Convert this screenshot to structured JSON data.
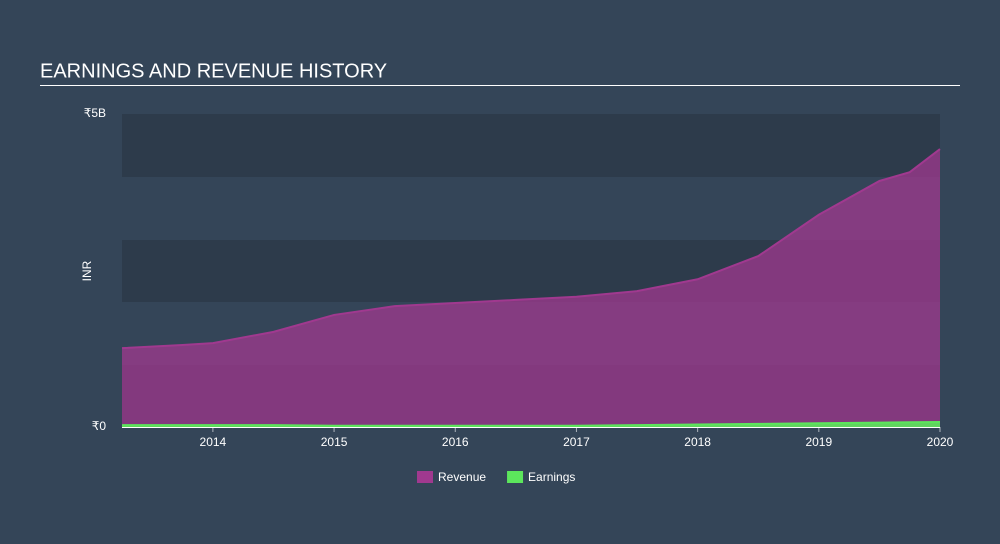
{
  "chart_data": {
    "type": "area",
    "title": "EARNINGS AND REVENUE HISTORY",
    "y_label": "INR",
    "x": [
      2013.25,
      2013.75,
      2014.0,
      2014.5,
      2015.0,
      2015.5,
      2016.0,
      2016.5,
      2017.0,
      2017.5,
      2018.0,
      2018.5,
      2019.0,
      2019.5,
      2019.75,
      2020.0
    ],
    "series": [
      {
        "name": "Revenue",
        "color": "#a0398f",
        "values": [
          1260000000,
          1310000000,
          1340000000,
          1520000000,
          1790000000,
          1930000000,
          1980000000,
          2030000000,
          2080000000,
          2170000000,
          2360000000,
          2730000000,
          3390000000,
          3930000000,
          4070000000,
          4440000000
        ]
      },
      {
        "name": "Earnings",
        "color": "#5ce65c",
        "values": [
          30000000,
          30000000,
          30000000,
          30000000,
          20000000,
          20000000,
          20000000,
          20000000,
          20000000,
          30000000,
          40000000,
          50000000,
          60000000,
          70000000,
          75000000,
          80000000
        ]
      }
    ],
    "xlim": [
      2013.25,
      2020.0
    ],
    "xticks": [
      2014,
      2015,
      2016,
      2017,
      2018,
      2019,
      2020
    ],
    "ylim": [
      0,
      5000000000
    ],
    "yticks": [
      {
        "value": 0,
        "label": "₹0"
      },
      {
        "value": 5000000000,
        "label": "₹5B"
      }
    ],
    "legend": "bottom"
  }
}
